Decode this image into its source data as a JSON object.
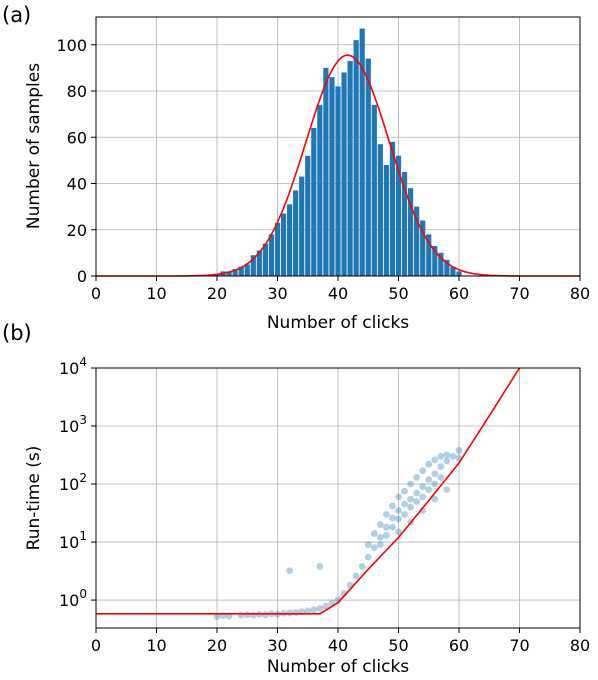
{
  "chart_data": [
    {
      "panel_label": "(a)",
      "type": "bar",
      "xlabel": "Number of clicks",
      "ylabel": "Number of samples",
      "xlim": [
        0,
        80
      ],
      "ylim": [
        0,
        112
      ],
      "xticks": [
        0,
        10,
        20,
        30,
        40,
        50,
        60,
        70,
        80
      ],
      "yticks": [
        0,
        20,
        40,
        60,
        80,
        100
      ],
      "grid": true,
      "bar_color": "#1f77b4",
      "curve_color": "#ff0000",
      "x": [
        20,
        21,
        22,
        23,
        24,
        25,
        26,
        27,
        28,
        29,
        30,
        31,
        32,
        33,
        34,
        35,
        36,
        37,
        38,
        39,
        40,
        41,
        42,
        43,
        44,
        45,
        46,
        47,
        48,
        49,
        50,
        51,
        52,
        53,
        54,
        55,
        56,
        57,
        58,
        59,
        60
      ],
      "values": [
        1,
        2,
        2,
        3,
        4,
        5,
        9,
        11,
        14,
        18,
        23,
        27,
        31,
        37,
        43,
        52,
        64,
        74,
        90,
        86,
        82,
        88,
        93,
        102,
        107,
        94,
        74,
        57,
        48,
        58,
        52,
        45,
        38,
        30,
        24,
        18,
        13,
        10,
        7,
        4,
        2
      ],
      "fit": {
        "type": "gaussian",
        "amplitude": 95.5,
        "mean": 41.6,
        "sd": 6.9
      }
    },
    {
      "panel_label": "(b)",
      "type": "scatter",
      "xlabel": "Number of clicks",
      "ylabel": "Run-time (s)",
      "xlim": [
        0,
        80
      ],
      "ylim": [
        0.33,
        10000
      ],
      "yscale": "log",
      "xticks": [
        0,
        10,
        20,
        30,
        40,
        50,
        60,
        70,
        80
      ],
      "yticks": [
        {
          "value": 1,
          "base": "10",
          "exp": "0"
        },
        {
          "value": 10,
          "base": "10",
          "exp": "1"
        },
        {
          "value": 100,
          "base": "10",
          "exp": "2"
        },
        {
          "value": 1000,
          "base": "10",
          "exp": "3"
        },
        {
          "value": 10000,
          "base": "10",
          "exp": "4"
        }
      ],
      "grid": true,
      "point_color": "#1f77b4",
      "curve_color": "#ff0000",
      "points": [
        [
          20,
          0.52
        ],
        [
          21,
          0.54
        ],
        [
          22,
          0.53
        ],
        [
          24,
          0.55
        ],
        [
          25,
          0.56
        ],
        [
          26,
          0.55
        ],
        [
          27,
          0.57
        ],
        [
          28,
          0.56
        ],
        [
          29,
          0.58
        ],
        [
          30,
          0.57
        ],
        [
          31,
          0.59
        ],
        [
          32,
          3.2
        ],
        [
          32,
          0.6
        ],
        [
          33,
          0.61
        ],
        [
          34,
          0.63
        ],
        [
          35,
          0.65
        ],
        [
          36,
          0.68
        ],
        [
          37,
          3.8
        ],
        [
          37,
          0.72
        ],
        [
          38,
          0.78
        ],
        [
          39,
          0.88
        ],
        [
          40,
          1.0
        ],
        [
          41,
          1.3
        ],
        [
          42,
          1.8
        ],
        [
          43,
          2.6
        ],
        [
          44,
          3.8
        ],
        [
          45,
          5.5
        ],
        [
          46,
          8
        ],
        [
          47,
          12
        ],
        [
          48,
          18
        ],
        [
          49,
          26
        ],
        [
          50,
          35
        ],
        [
          51,
          45
        ],
        [
          52,
          55
        ],
        [
          53,
          70
        ],
        [
          54,
          90
        ],
        [
          55,
          120
        ],
        [
          56,
          150
        ],
        [
          57,
          200
        ],
        [
          58,
          250
        ],
        [
          59,
          300
        ],
        [
          60,
          280
        ],
        [
          58,
          320
        ],
        [
          60,
          380
        ],
        [
          45,
          9
        ],
        [
          46,
          14
        ],
        [
          47,
          20
        ],
        [
          48,
          30
        ],
        [
          49,
          42
        ],
        [
          50,
          60
        ],
        [
          51,
          75
        ],
        [
          52,
          100
        ],
        [
          53,
          130
        ],
        [
          54,
          170
        ],
        [
          55,
          220
        ],
        [
          56,
          260
        ],
        [
          57,
          300
        ],
        [
          47,
          9
        ],
        [
          48,
          13
        ],
        [
          49,
          18
        ],
        [
          50,
          25
        ],
        [
          51,
          30
        ],
        [
          52,
          40
        ],
        [
          53,
          50
        ],
        [
          54,
          60
        ],
        [
          55,
          80
        ],
        [
          56,
          100
        ],
        [
          57,
          130
        ],
        [
          50,
          15
        ],
        [
          52,
          22
        ],
        [
          54,
          35
        ],
        [
          56,
          55
        ],
        [
          58,
          80
        ]
      ],
      "fit": {
        "type": "piecewise",
        "baseline": 0.58,
        "knee_x": 40,
        "exp_x": [
          40,
          45,
          50,
          55,
          60,
          65,
          70
        ],
        "exp_y": [
          0.9,
          3.4,
          12,
          52,
          230,
          1500,
          10000
        ]
      }
    }
  ]
}
